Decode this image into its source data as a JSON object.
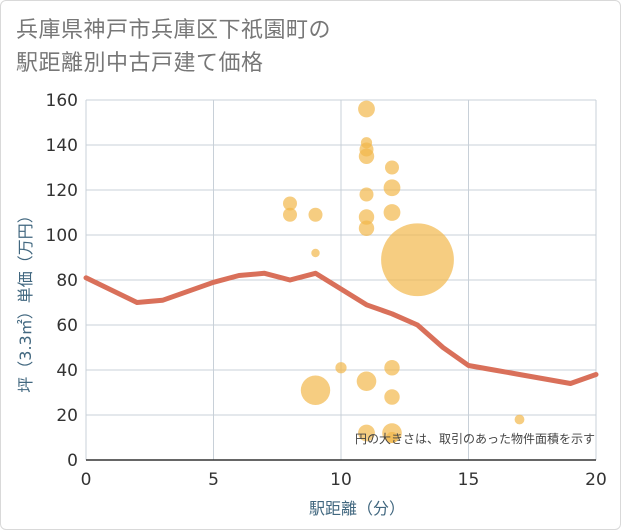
{
  "header": {
    "title_line1": "兵庫県神戸市兵庫区下祇園町の",
    "title_line2": "駅距離別中古戸建て価格"
  },
  "chart_data": {
    "type": "scatter",
    "xlabel": "駅距離（分）",
    "ylabel": "坪（3.3㎡）単価（万円）",
    "xlim": [
      0,
      20
    ],
    "ylim": [
      0,
      160
    ],
    "xticks": [
      0,
      5,
      10,
      15,
      20
    ],
    "yticks": [
      0,
      20,
      40,
      60,
      80,
      100,
      120,
      140,
      160
    ],
    "grid": true,
    "note": "円の大きさは、取引のあった物件面積を示す",
    "colors": {
      "points": "#f2b84b",
      "trend": "#d9705a",
      "grid": "#c8d0d8"
    },
    "points": [
      {
        "x": 8,
        "y": 114,
        "size": 1.0
      },
      {
        "x": 8,
        "y": 109,
        "size": 1.0
      },
      {
        "x": 9,
        "y": 109,
        "size": 1.0
      },
      {
        "x": 9,
        "y": 92,
        "size": 0.6
      },
      {
        "x": 9,
        "y": 31,
        "size": 2.1
      },
      {
        "x": 10,
        "y": 41,
        "size": 0.8
      },
      {
        "x": 11,
        "y": 156,
        "size": 1.2
      },
      {
        "x": 11,
        "y": 141,
        "size": 0.8
      },
      {
        "x": 11,
        "y": 138,
        "size": 1.0
      },
      {
        "x": 11,
        "y": 135,
        "size": 1.1
      },
      {
        "x": 11,
        "y": 118,
        "size": 1.0
      },
      {
        "x": 11,
        "y": 108,
        "size": 1.1
      },
      {
        "x": 11,
        "y": 103,
        "size": 1.1
      },
      {
        "x": 11,
        "y": 35,
        "size": 1.4
      },
      {
        "x": 11,
        "y": 12,
        "size": 1.2
      },
      {
        "x": 12,
        "y": 130,
        "size": 1.0
      },
      {
        "x": 12,
        "y": 121,
        "size": 1.2
      },
      {
        "x": 12,
        "y": 110,
        "size": 1.2
      },
      {
        "x": 12,
        "y": 41,
        "size": 1.1
      },
      {
        "x": 12,
        "y": 28,
        "size": 1.1
      },
      {
        "x": 12,
        "y": 12,
        "size": 1.4
      },
      {
        "x": 12,
        "y": 10,
        "size": 0.8
      },
      {
        "x": 13,
        "y": 89,
        "size": 5.2
      },
      {
        "x": 17,
        "y": 18,
        "size": 0.7
      }
    ],
    "trend": {
      "x": [
        0,
        2,
        3,
        4,
        5,
        6,
        7,
        8,
        9,
        10,
        11,
        12,
        13,
        14,
        15,
        16,
        17,
        18,
        19,
        20
      ],
      "y": [
        81,
        70,
        71,
        75,
        79,
        82,
        83,
        80,
        83,
        76,
        69,
        65,
        60,
        50,
        42,
        40,
        38,
        36,
        34,
        38
      ]
    }
  }
}
